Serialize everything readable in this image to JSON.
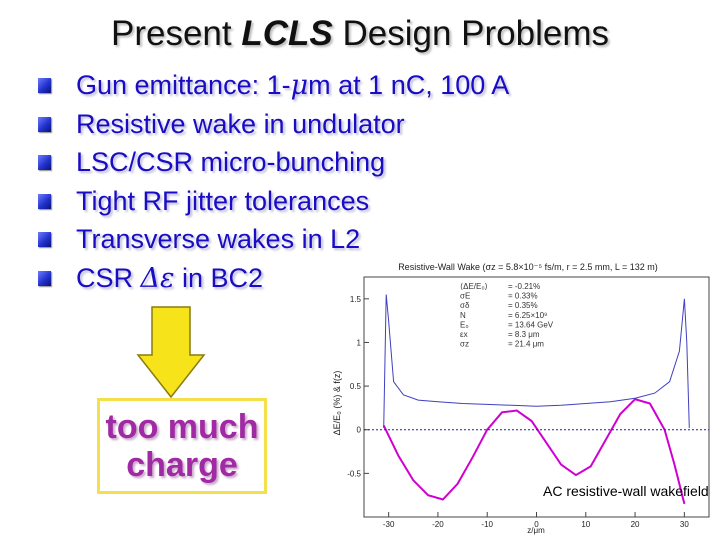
{
  "slide": {
    "title_prefix": "Present ",
    "title_emphasis": "LCLS",
    "title_suffix": " Design Problems",
    "bullets": [
      {
        "pre": "Gun emittance: 1-",
        "sym": "μ",
        "post": "m at 1 n",
        "post2": "C, 100 A"
      },
      {
        "text": "Resistive wake in undulator"
      },
      {
        "text": "LSC/CSR micro-bunching"
      },
      {
        "text": "Tight RF jitter tolerances"
      },
      {
        "text": "Transverse wakes in L2"
      },
      {
        "pre": "CSR ",
        "sym": "Δε",
        "post": " in BC2"
      }
    ],
    "box_line1": "too much",
    "box_line2": "charge",
    "accent_color": "#1a0cc4",
    "box_text_color": "#a02aa4",
    "arrow_color": "#f7e31a"
  },
  "chart_data": {
    "type": "line",
    "title": "Resistive-Wall Wake (σz = 5.8×10⁻⁵ fs/m, r = 2.5 mm, L = 132 m)",
    "xlabel": "z/μm",
    "ylabel": "ΔE/E₀ (%) & f(z)",
    "caption": "AC resistive-wall wakefield",
    "xlim": [
      -35,
      35
    ],
    "ylim": [
      -1.0,
      1.75
    ],
    "xticks": [
      "-30",
      "-20",
      "-10",
      "0",
      "10",
      "20",
      "30"
    ],
    "yticks": [
      "-0.5",
      "0",
      "0.5",
      "1",
      "1.5"
    ],
    "ytick_values": [
      -0.5,
      0,
      0.5,
      1,
      1.5
    ],
    "xtick_values": [
      -30,
      -20,
      -10,
      0,
      10,
      20,
      30
    ],
    "legend": [
      {
        "label": "⟨ΔE/E₀⟩",
        "value": "= -0.21%"
      },
      {
        "label": "σE",
        "value": "= 0.33%"
      },
      {
        "label": "σδ",
        "value": "= 0.35%"
      },
      {
        "label": "N",
        "value": "= 6.25×10⁹"
      },
      {
        "label": "E₀",
        "value": "= 13.64 GeV"
      },
      {
        "label": "εx",
        "value": "= 8.3 μm"
      },
      {
        "label": "σz",
        "value": "= 21.4 μm"
      }
    ],
    "series": [
      {
        "color": "#d000d0",
        "x": [
          -31,
          -28,
          -25,
          -22,
          -19,
          -16,
          -13,
          -10,
          -7,
          -4,
          -1,
          2,
          5,
          8,
          11,
          14,
          17,
          20,
          23,
          26,
          28,
          30
        ],
        "y": [
          0.05,
          -0.3,
          -0.58,
          -0.75,
          -0.8,
          -0.62,
          -0.32,
          0.0,
          0.2,
          0.22,
          0.1,
          -0.15,
          -0.4,
          -0.52,
          -0.42,
          -0.12,
          0.18,
          0.35,
          0.3,
          0.0,
          -0.4,
          -0.85
        ]
      },
      {
        "color": "#4040c0",
        "x": [
          -31,
          -30.5,
          -30,
          -29,
          -27,
          -24,
          -20,
          -15,
          -10,
          -5,
          0,
          5,
          10,
          15,
          20,
          24,
          27,
          29,
          30,
          30.5,
          31
        ],
        "y": [
          0.02,
          1.55,
          1.25,
          0.55,
          0.4,
          0.34,
          0.32,
          0.3,
          0.29,
          0.28,
          0.27,
          0.28,
          0.3,
          0.32,
          0.36,
          0.42,
          0.55,
          0.9,
          1.5,
          1.0,
          0.02
        ]
      },
      {
        "color": "#2020a0",
        "x": [
          -35,
          35
        ],
        "y": [
          0,
          0
        ]
      }
    ]
  }
}
